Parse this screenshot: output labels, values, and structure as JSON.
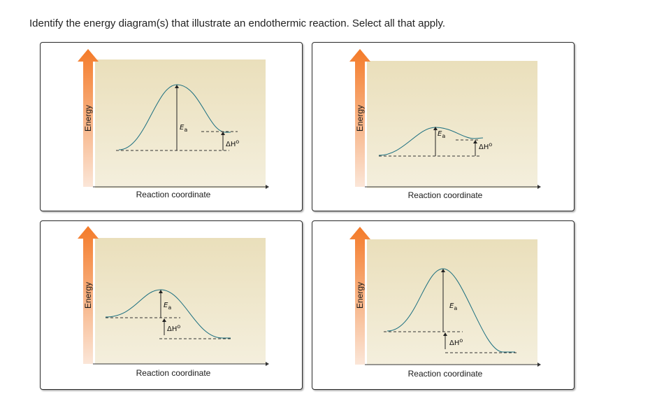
{
  "question": {
    "text": "Identify the energy diagram(s) that illustrate an endothermic reaction.  Select all that apply."
  },
  "diagram_labels": {
    "y_axis": "Energy",
    "x_axis": "Reaction coordinate",
    "activation_energy_symbol": "E",
    "activation_energy_subscript": "a",
    "enthalpy_symbol": "ΔH",
    "enthalpy_superscript": "o"
  },
  "colors": {
    "curve": "#1b6f80",
    "arrow_top": "#f47a28",
    "arrow_bottom": "#fbe6d8",
    "panel_top": "#eadfbb",
    "panel_bottom": "#f4efdd"
  },
  "options": [
    {
      "id": "A",
      "reaction": "endothermic",
      "reactant_energy": 0,
      "transition_energy": 92,
      "product_energy": 27
    },
    {
      "id": "B",
      "reaction": "endothermic",
      "reactant_energy": 0,
      "transition_energy": 40,
      "product_energy": 23
    },
    {
      "id": "C",
      "reaction": "exothermic",
      "reactant_energy": 30,
      "transition_energy": 54,
      "product_energy": 0
    },
    {
      "id": "D",
      "reaction": "exothermic",
      "reactant_energy": 30,
      "transition_energy": 95,
      "product_energy": 0
    }
  ]
}
